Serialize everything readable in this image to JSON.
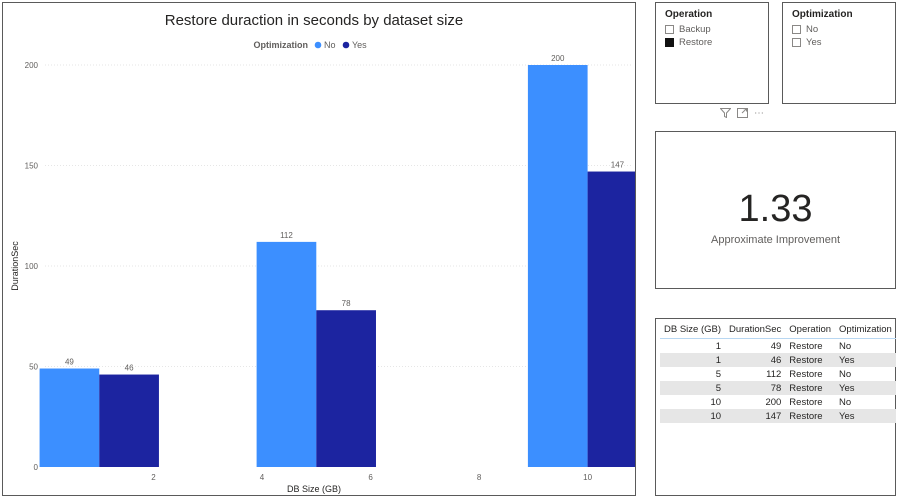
{
  "chart_data": {
    "type": "bar",
    "title": "Restore duraction in seconds by dataset size",
    "xlabel": "DB Size (GB)",
    "ylabel": "DurationSec",
    "legend_title": "Optimization",
    "legend_placement": "top-center",
    "x_ticks": [
      "2",
      "4",
      "6",
      "8",
      "10"
    ],
    "y_ticks": [
      0,
      50,
      100,
      150,
      200
    ],
    "ylim": [
      0,
      200
    ],
    "categories": [
      1,
      5,
      10
    ],
    "series": [
      {
        "name": "No",
        "color": "#3c8fff",
        "values": [
          49,
          112,
          200
        ]
      },
      {
        "name": "Yes",
        "color": "#1c24a0",
        "values": [
          46,
          78,
          147
        ]
      }
    ],
    "grid": true
  },
  "slicers": {
    "operation": {
      "title": "Operation",
      "items": [
        {
          "label": "Backup",
          "checked": false
        },
        {
          "label": "Restore",
          "checked": true
        }
      ]
    },
    "optimization": {
      "title": "Optimization",
      "items": [
        {
          "label": "No",
          "checked": false
        },
        {
          "label": "Yes",
          "checked": false
        }
      ]
    }
  },
  "visual_header_icons": [
    "filter-icon",
    "focus-mode-icon",
    "more-options-icon"
  ],
  "card": {
    "value": "1.33",
    "label": "Approximate Improvement"
  },
  "table": {
    "headers": [
      "DB Size (GB)",
      "DurationSec",
      "Operation",
      "Optimization"
    ],
    "rows": [
      [
        "1",
        "49",
        "Restore",
        "No"
      ],
      [
        "1",
        "46",
        "Restore",
        "Yes"
      ],
      [
        "5",
        "112",
        "Restore",
        "No"
      ],
      [
        "5",
        "78",
        "Restore",
        "Yes"
      ],
      [
        "10",
        "200",
        "Restore",
        "No"
      ],
      [
        "10",
        "147",
        "Restore",
        "Yes"
      ]
    ]
  }
}
